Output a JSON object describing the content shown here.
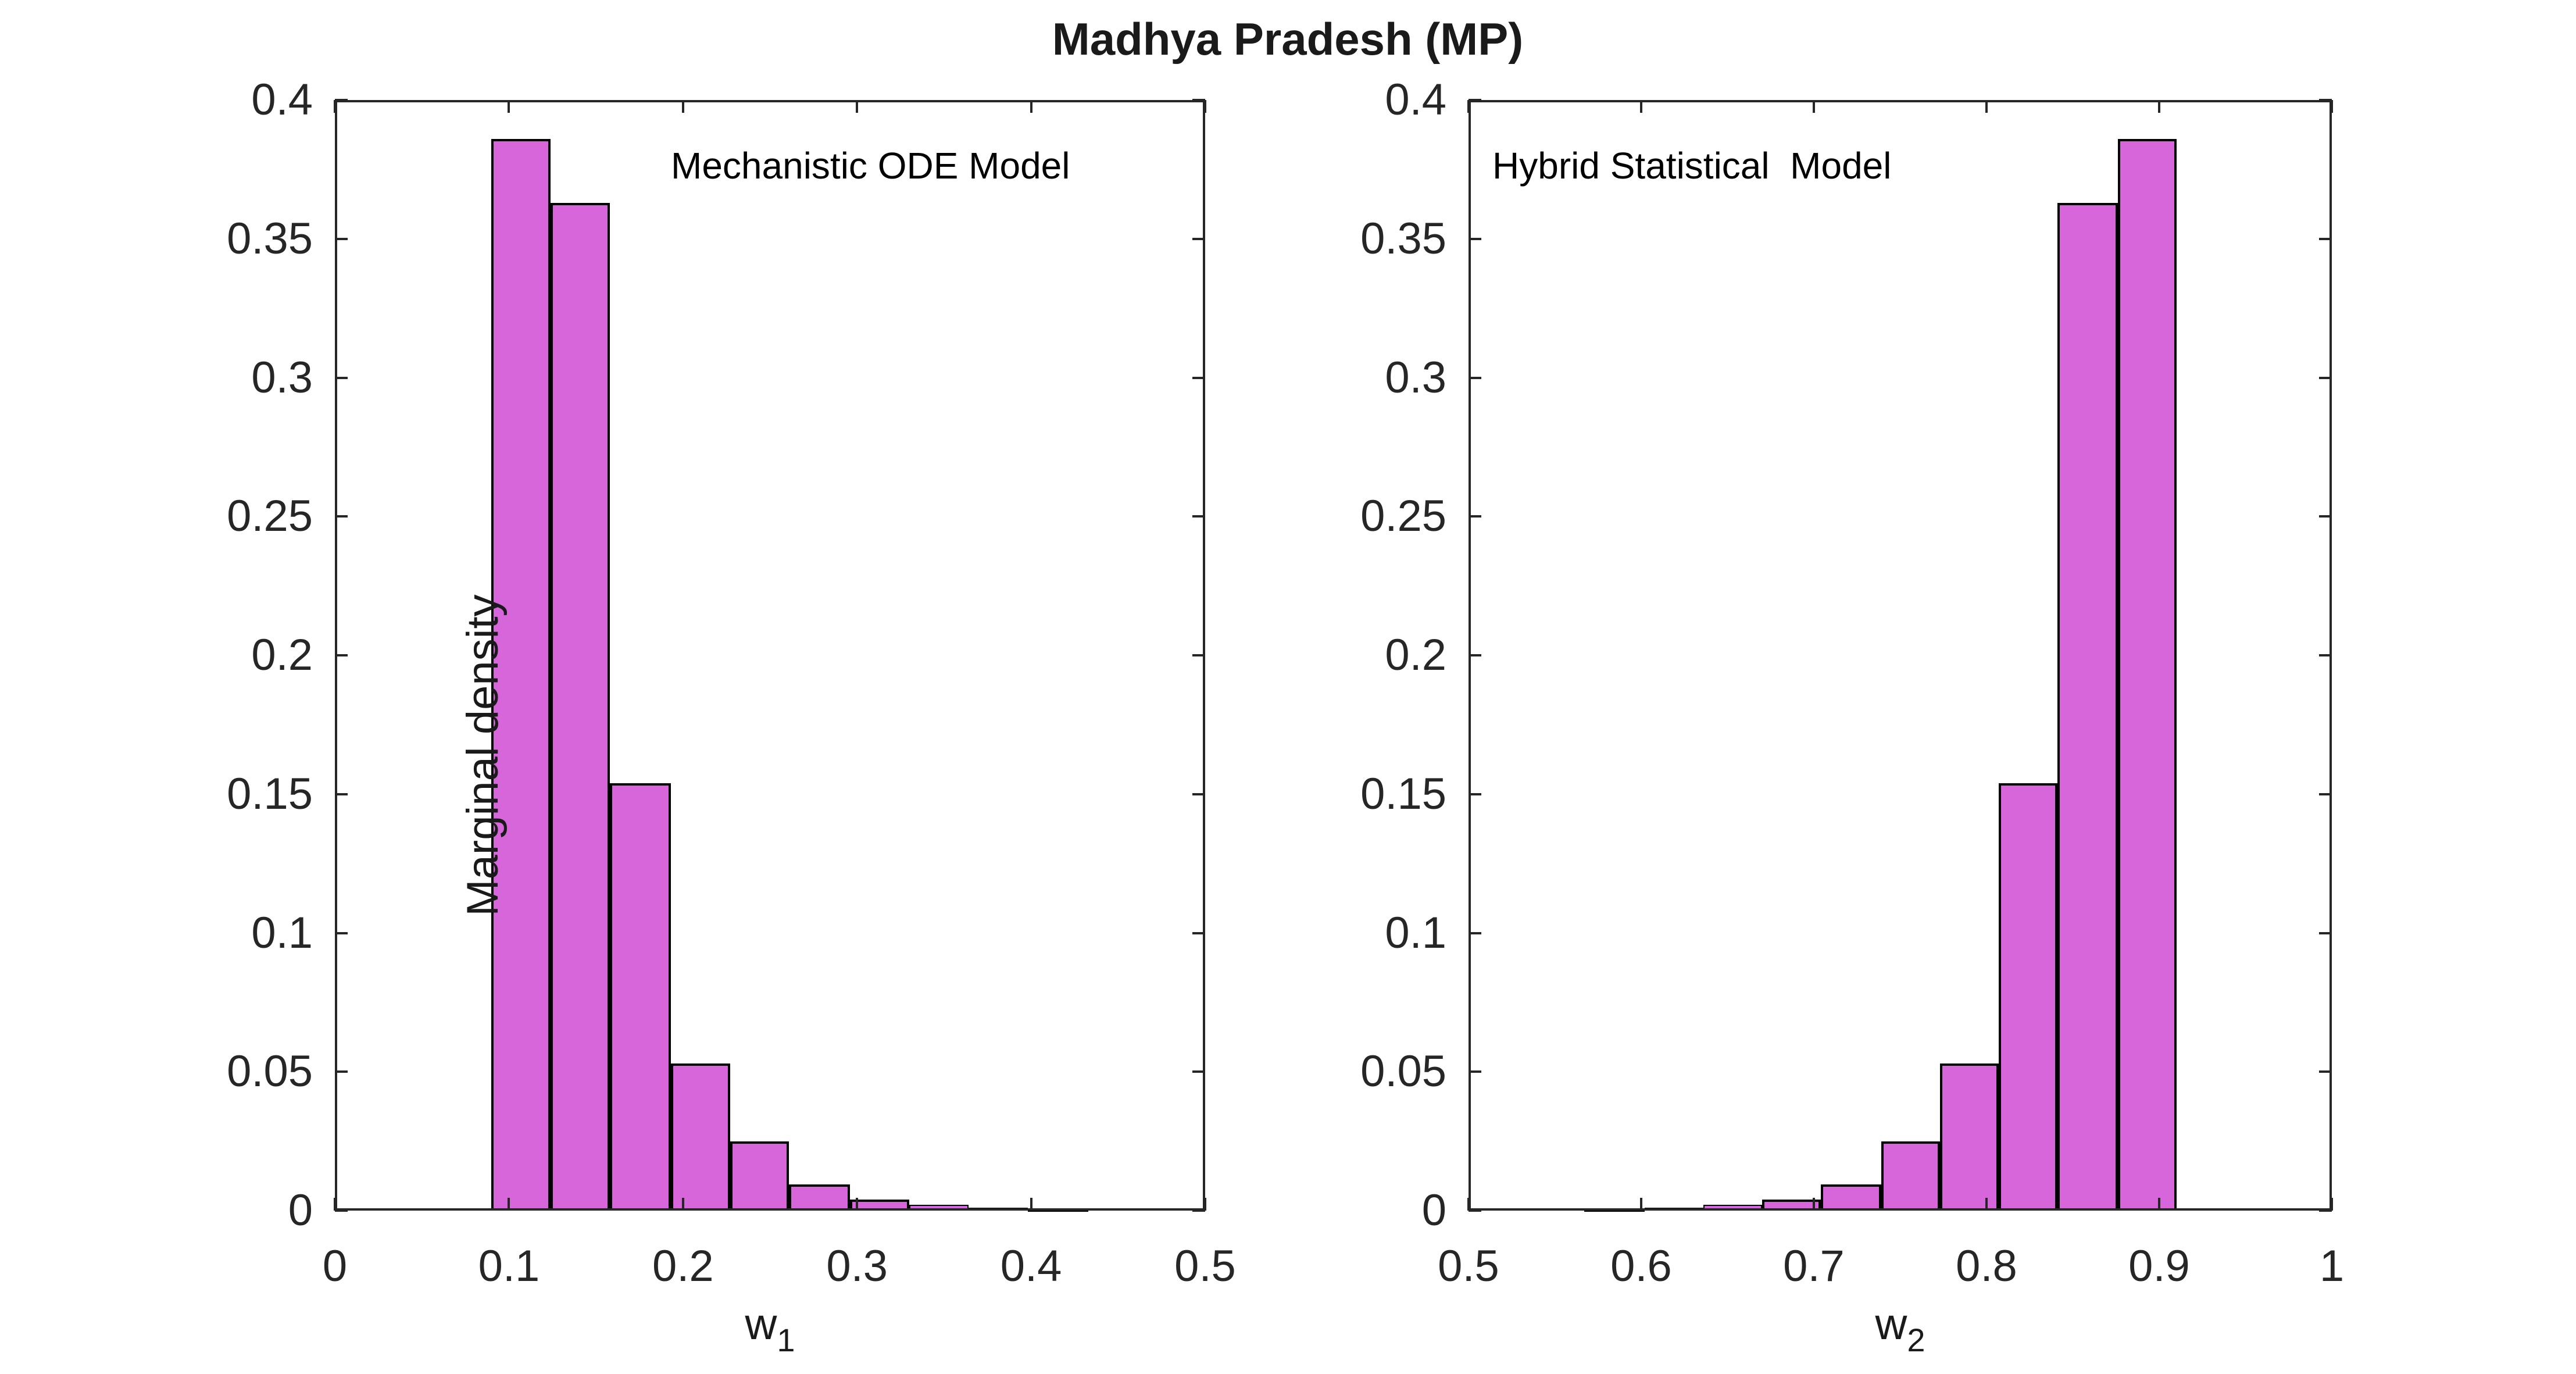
{
  "figure": {
    "title": "Madhya Pradesh (MP)",
    "background": "#ffffff",
    "bar_fill": "#d666d9",
    "bar_edge": "#000000",
    "axis_color": "#262626",
    "label_color": "#1a1a1a"
  },
  "chart_data": [
    {
      "type": "bar",
      "subtype": "histogram",
      "panel": "left",
      "annotation": "Mechanistic ODE Model",
      "xlabel_base": "w",
      "xlabel_sub": "1",
      "ylabel": "Marginal density",
      "xlim": [
        0,
        0.5
      ],
      "ylim": [
        0,
        0.4
      ],
      "x_ticks": [
        0,
        0.1,
        0.2,
        0.3,
        0.4,
        0.5
      ],
      "x_tick_labels": [
        "0",
        "0.1",
        "0.2",
        "0.3",
        "0.4",
        "0.5"
      ],
      "y_ticks": [
        0,
        0.05,
        0.1,
        0.15,
        0.2,
        0.25,
        0.3,
        0.35,
        0.4
      ],
      "y_tick_labels": [
        "0",
        "0.05",
        "0.1",
        "0.15",
        "0.2",
        "0.25",
        "0.3",
        "0.35",
        "0.4"
      ],
      "grid": false,
      "legend": null,
      "bin_edges": [
        0.09,
        0.124,
        0.158,
        0.193,
        0.227,
        0.261,
        0.296,
        0.33,
        0.364,
        0.398,
        0.433
      ],
      "densities": [
        0.386,
        0.363,
        0.154,
        0.053,
        0.025,
        0.0095,
        0.004,
        0.002,
        0.001,
        0.0005
      ]
    },
    {
      "type": "bar",
      "subtype": "histogram",
      "panel": "right",
      "annotation": "Hybrid Statistical  Model",
      "xlabel_base": "w",
      "xlabel_sub": "2",
      "ylabel": null,
      "xlim": [
        0.5,
        1.0
      ],
      "ylim": [
        0,
        0.4
      ],
      "x_ticks": [
        0.5,
        0.6,
        0.7,
        0.8,
        0.9,
        1.0
      ],
      "x_tick_labels": [
        "0.5",
        "0.6",
        "0.7",
        "0.8",
        "0.9",
        "1"
      ],
      "y_ticks": [
        0,
        0.05,
        0.1,
        0.15,
        0.2,
        0.25,
        0.3,
        0.35,
        0.4
      ],
      "y_tick_labels": [
        "0",
        "0.05",
        "0.1",
        "0.15",
        "0.2",
        "0.25",
        "0.3",
        "0.35",
        "0.4"
      ],
      "grid": false,
      "legend": null,
      "bin_edges": [
        0.567,
        0.602,
        0.636,
        0.67,
        0.704,
        0.739,
        0.773,
        0.807,
        0.841,
        0.876,
        0.91
      ],
      "densities": [
        0.0005,
        0.001,
        0.002,
        0.004,
        0.0095,
        0.025,
        0.053,
        0.154,
        0.363,
        0.386
      ]
    }
  ]
}
